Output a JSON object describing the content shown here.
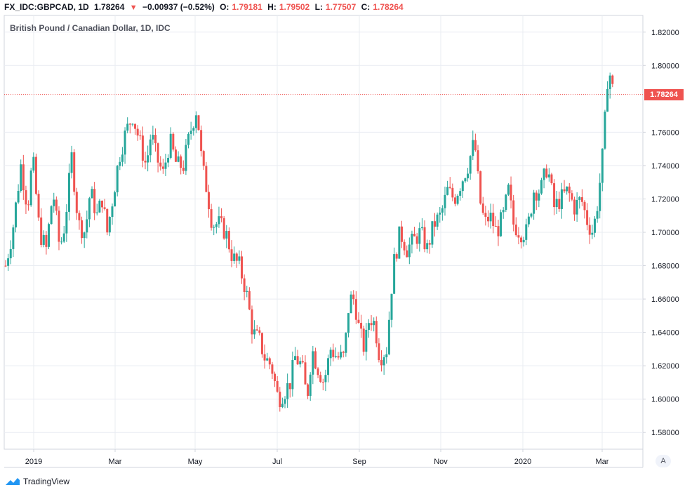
{
  "header": {
    "symbol": "FX_IDC:GBPCAD, 1D",
    "last": "1.78264",
    "change_arrow": "▼",
    "change": "−0.00937 (−0.52%)",
    "o_label": "O:",
    "o_value": "1.79181",
    "h_label": "H:",
    "h_value": "1.79502",
    "l_label": "L:",
    "l_value": "1.77507",
    "c_label": "C:",
    "c_value": "1.78264"
  },
  "legend": {
    "title": "British Pound / Canadian Dollar, 1D, IDC"
  },
  "price_label": "1.78264",
  "auto_button": "A",
  "brand": {
    "name": "TradingView",
    "icon": "tradingview-cloud-icon"
  },
  "colors": {
    "up": "#26a69a",
    "down": "#ef5350",
    "grid": "#e9ecf2",
    "axis": "#d1d4dc",
    "text": "#131722"
  },
  "chart_data": {
    "type": "candlestick",
    "title": "British Pound / Canadian Dollar, 1D, IDC",
    "ylim": [
      1.57,
      1.83
    ],
    "y_ticks": [
      "1.82000",
      "1.80000",
      "1.76000",
      "1.74000",
      "1.72000",
      "1.70000",
      "1.68000",
      "1.66000",
      "1.64000",
      "1.62000",
      "1.60000",
      "1.58000"
    ],
    "x_ticks": [
      "2019",
      "Mar",
      "May",
      "Jul",
      "Sep",
      "Nov",
      "2020",
      "Mar"
    ],
    "last_price": 1.78264,
    "grid": true,
    "series": [
      {
        "name": "GBPCAD",
        "values_note_free": true,
        "path": [
          [
            0,
            1.68
          ],
          [
            8,
            1.7
          ],
          [
            18,
            1.74
          ],
          [
            26,
            1.715
          ],
          [
            32,
            1.745
          ],
          [
            40,
            1.7
          ],
          [
            48,
            1.69
          ],
          [
            56,
            1.725
          ],
          [
            64,
            1.69
          ],
          [
            70,
            1.705
          ],
          [
            78,
            1.745
          ],
          [
            86,
            1.705
          ],
          [
            94,
            1.7
          ],
          [
            100,
            1.725
          ],
          [
            108,
            1.71
          ],
          [
            114,
            1.72
          ],
          [
            120,
            1.7
          ],
          [
            128,
            1.725
          ],
          [
            134,
            1.745
          ],
          [
            142,
            1.76
          ],
          [
            150,
            1.77
          ],
          [
            158,
            1.755
          ],
          [
            166,
            1.74
          ],
          [
            172,
            1.76
          ],
          [
            178,
            1.745
          ],
          [
            186,
            1.735
          ],
          [
            194,
            1.755
          ],
          [
            202,
            1.74
          ],
          [
            210,
            1.74
          ],
          [
            218,
            1.76
          ],
          [
            226,
            1.775
          ],
          [
            232,
            1.74
          ],
          [
            238,
            1.725
          ],
          [
            244,
            1.705
          ],
          [
            252,
            1.705
          ],
          [
            260,
            1.7
          ],
          [
            268,
            1.685
          ],
          [
            276,
            1.68
          ],
          [
            284,
            1.665
          ],
          [
            292,
            1.64
          ],
          [
            300,
            1.635
          ],
          [
            306,
            1.625
          ],
          [
            314,
            1.62
          ],
          [
            322,
            1.6
          ],
          [
            330,
            1.605
          ],
          [
            336,
            1.61
          ],
          [
            342,
            1.625
          ],
          [
            350,
            1.62
          ],
          [
            356,
            1.6
          ],
          [
            362,
            1.63
          ],
          [
            368,
            1.62
          ],
          [
            376,
            1.61
          ],
          [
            384,
            1.63
          ],
          [
            392,
            1.625
          ],
          [
            400,
            1.625
          ],
          [
            406,
            1.66
          ],
          [
            412,
            1.66
          ],
          [
            418,
            1.64
          ],
          [
            424,
            1.63
          ],
          [
            430,
            1.65
          ],
          [
            436,
            1.645
          ],
          [
            442,
            1.625
          ],
          [
            450,
            1.63
          ],
          [
            458,
            1.68
          ],
          [
            466,
            1.7
          ],
          [
            474,
            1.69
          ],
          [
            482,
            1.695
          ],
          [
            490,
            1.7
          ],
          [
            498,
            1.69
          ],
          [
            506,
            1.705
          ],
          [
            514,
            1.71
          ],
          [
            522,
            1.725
          ],
          [
            530,
            1.72
          ],
          [
            538,
            1.73
          ],
          [
            546,
            1.74
          ],
          [
            554,
            1.755
          ],
          [
            560,
            1.72
          ],
          [
            566,
            1.705
          ],
          [
            572,
            1.71
          ],
          [
            580,
            1.7
          ],
          [
            588,
            1.71
          ],
          [
            594,
            1.725
          ],
          [
            600,
            1.705
          ],
          [
            608,
            1.7
          ],
          [
            616,
            1.7
          ],
          [
            624,
            1.725
          ],
          [
            632,
            1.725
          ],
          [
            640,
            1.74
          ],
          [
            648,
            1.715
          ],
          [
            656,
            1.72
          ],
          [
            664,
            1.725
          ],
          [
            672,
            1.715
          ],
          [
            680,
            1.72
          ],
          [
            688,
            1.705
          ],
          [
            694,
            1.7
          ],
          [
            700,
            1.72
          ],
          [
            706,
            1.75
          ],
          [
            712,
            1.8
          ],
          [
            718,
            1.783
          ]
        ]
      }
    ]
  }
}
